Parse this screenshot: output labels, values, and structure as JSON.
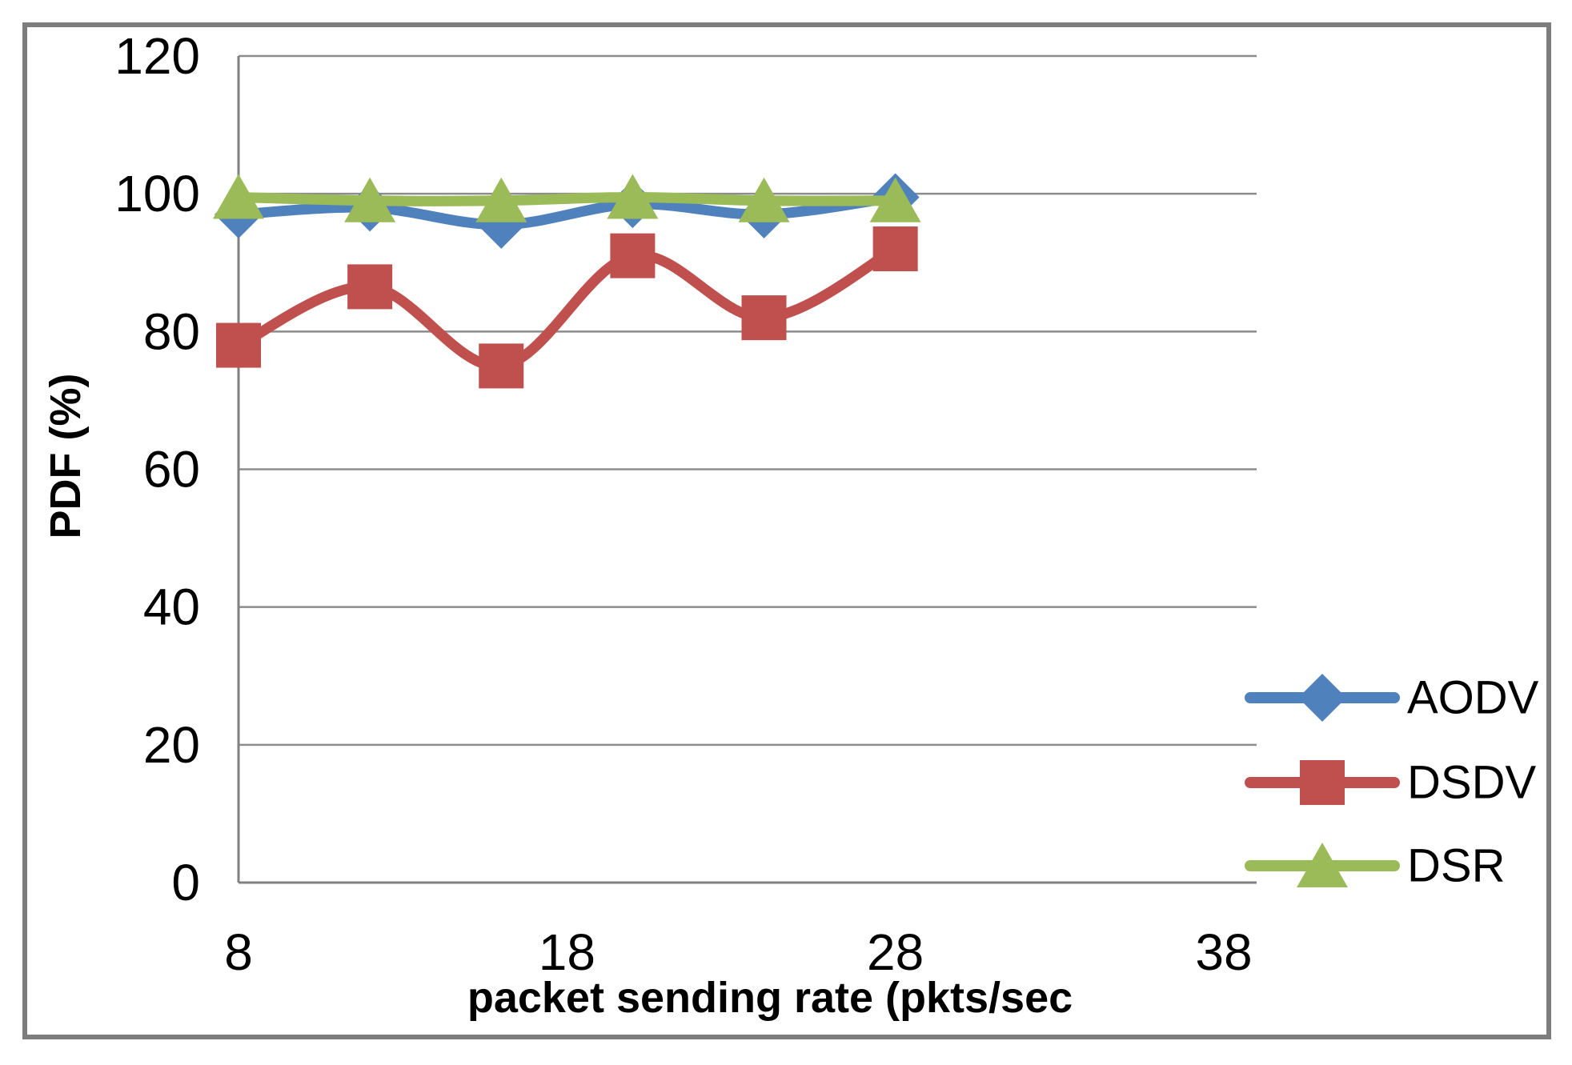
{
  "figure": {
    "background": "#ffffff",
    "border_color": "#7d7d7d"
  },
  "chart_data": {
    "type": "line",
    "title": "",
    "xlabel": "packet sending rate (pkts/sec",
    "ylabel": "PDF (%)",
    "x": [
      8,
      12,
      16,
      20,
      24,
      28
    ],
    "xticks": [
      8,
      18,
      28,
      38
    ],
    "xlim": [
      8,
      39
    ],
    "yticks": [
      0,
      20,
      40,
      60,
      80,
      100,
      120
    ],
    "ylim": [
      0,
      120
    ],
    "grid": "horizontal",
    "grid_color": "#8c8c8c",
    "axis_color": "#808080",
    "text_color": "#000000",
    "line_style": "smooth",
    "legend_position": "right",
    "series": [
      {
        "name": "AODV",
        "color": "#4f81bd",
        "marker": "diamond",
        "values": [
          97,
          98,
          95.5,
          98.5,
          97,
          99.5
        ]
      },
      {
        "name": "DSDV",
        "color": "#c0504d",
        "marker": "square",
        "values": [
          78,
          86.5,
          75,
          91,
          82,
          92
        ]
      },
      {
        "name": "DSR",
        "color": "#9bbb59",
        "marker": "triangle",
        "values": [
          99.5,
          99,
          99,
          99.5,
          99,
          99
        ]
      }
    ]
  }
}
